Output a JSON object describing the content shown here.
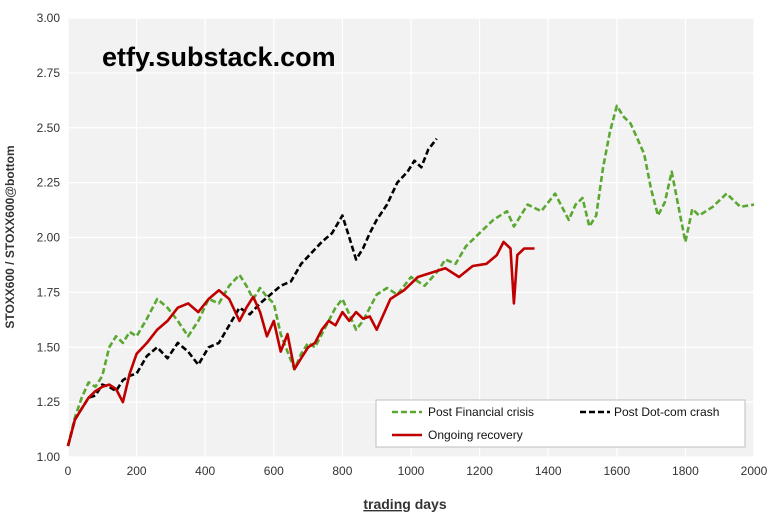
{
  "watermark": "etfy.substack.com",
  "chart_data": {
    "type": "line",
    "title": "",
    "xlabel_underlined": "trading",
    "xlabel_rest": " days",
    "ylabel": "STOXX600 / STOXX600@bottom",
    "xlim": [
      0,
      2000
    ],
    "ylim": [
      1.0,
      3.0
    ],
    "x_ticks": [
      "0",
      "200",
      "400",
      "600",
      "800",
      "1000",
      "1200",
      "1400",
      "1600",
      "1800",
      "2000"
    ],
    "y_ticks": [
      "1.00",
      "1.25",
      "1.50",
      "1.75",
      "2.00",
      "2.25",
      "2.50",
      "2.75",
      "3.00"
    ],
    "grid": true,
    "legend_position": "bottom-right",
    "series": [
      {
        "name": "Post Financial crisis",
        "color": "#5aa832",
        "dash": "6,3",
        "x": [
          0,
          20,
          40,
          60,
          80,
          100,
          120,
          140,
          160,
          180,
          200,
          230,
          260,
          290,
          320,
          350,
          380,
          410,
          440,
          470,
          500,
          520,
          540,
          560,
          580,
          600,
          620,
          640,
          660,
          680,
          700,
          720,
          740,
          760,
          780,
          800,
          820,
          840,
          860,
          880,
          900,
          930,
          960,
          1000,
          1040,
          1080,
          1100,
          1130,
          1160,
          1200,
          1240,
          1280,
          1300,
          1340,
          1380,
          1420,
          1440,
          1460,
          1480,
          1500,
          1520,
          1540,
          1560,
          1580,
          1600,
          1620,
          1640,
          1660,
          1680,
          1700,
          1720,
          1740,
          1760,
          1780,
          1800,
          1820,
          1840,
          1880,
          1920,
          1960,
          2000
        ],
        "y": [
          1.05,
          1.18,
          1.27,
          1.34,
          1.32,
          1.37,
          1.5,
          1.55,
          1.52,
          1.57,
          1.55,
          1.63,
          1.72,
          1.68,
          1.62,
          1.55,
          1.62,
          1.72,
          1.7,
          1.78,
          1.83,
          1.78,
          1.72,
          1.77,
          1.73,
          1.7,
          1.56,
          1.48,
          1.4,
          1.47,
          1.52,
          1.5,
          1.56,
          1.62,
          1.68,
          1.72,
          1.65,
          1.58,
          1.62,
          1.68,
          1.74,
          1.77,
          1.74,
          1.82,
          1.78,
          1.85,
          1.9,
          1.88,
          1.96,
          2.02,
          2.08,
          2.12,
          2.05,
          2.15,
          2.12,
          2.2,
          2.14,
          2.08,
          2.15,
          2.18,
          2.05,
          2.1,
          2.32,
          2.48,
          2.6,
          2.55,
          2.52,
          2.45,
          2.38,
          2.22,
          2.1,
          2.16,
          2.3,
          2.14,
          1.98,
          2.13,
          2.1,
          2.14,
          2.2,
          2.14,
          2.15
        ]
      },
      {
        "name": "Post Dot-com crash",
        "color": "#000000",
        "dash": "6,3",
        "x": [
          0,
          20,
          40,
          60,
          80,
          100,
          120,
          140,
          160,
          180,
          200,
          230,
          260,
          290,
          320,
          350,
          380,
          410,
          440,
          470,
          500,
          530,
          560,
          590,
          620,
          650,
          680,
          710,
          740,
          770,
          800,
          820,
          840,
          860,
          880,
          900,
          930,
          960,
          990,
          1010,
          1030,
          1050,
          1075
        ],
        "y": [
          1.05,
          1.17,
          1.22,
          1.27,
          1.28,
          1.33,
          1.32,
          1.3,
          1.35,
          1.37,
          1.38,
          1.46,
          1.5,
          1.45,
          1.52,
          1.48,
          1.42,
          1.5,
          1.52,
          1.6,
          1.68,
          1.65,
          1.7,
          1.74,
          1.78,
          1.8,
          1.88,
          1.93,
          1.98,
          2.02,
          2.1,
          2.0,
          1.9,
          1.95,
          2.02,
          2.08,
          2.15,
          2.25,
          2.3,
          2.35,
          2.32,
          2.4,
          2.45
        ]
      },
      {
        "name": "Ongoing recovery",
        "color": "#c00000",
        "dash": "",
        "x": [
          0,
          20,
          40,
          60,
          80,
          100,
          120,
          140,
          160,
          180,
          200,
          230,
          260,
          290,
          320,
          350,
          380,
          410,
          440,
          470,
          500,
          520,
          540,
          560,
          580,
          600,
          620,
          640,
          660,
          680,
          700,
          720,
          740,
          760,
          780,
          800,
          820,
          840,
          860,
          880,
          900,
          940,
          980,
          1020,
          1060,
          1100,
          1140,
          1180,
          1220,
          1250,
          1270,
          1290,
          1300,
          1310,
          1330,
          1360
        ],
        "y": [
          1.05,
          1.17,
          1.22,
          1.27,
          1.3,
          1.32,
          1.33,
          1.31,
          1.25,
          1.38,
          1.47,
          1.52,
          1.58,
          1.62,
          1.68,
          1.7,
          1.66,
          1.72,
          1.76,
          1.72,
          1.62,
          1.68,
          1.73,
          1.66,
          1.55,
          1.62,
          1.48,
          1.56,
          1.4,
          1.45,
          1.5,
          1.52,
          1.58,
          1.62,
          1.6,
          1.66,
          1.62,
          1.66,
          1.63,
          1.64,
          1.58,
          1.72,
          1.76,
          1.82,
          1.84,
          1.86,
          1.82,
          1.87,
          1.88,
          1.92,
          1.98,
          1.95,
          1.7,
          1.92,
          1.95,
          1.95
        ]
      }
    ]
  }
}
